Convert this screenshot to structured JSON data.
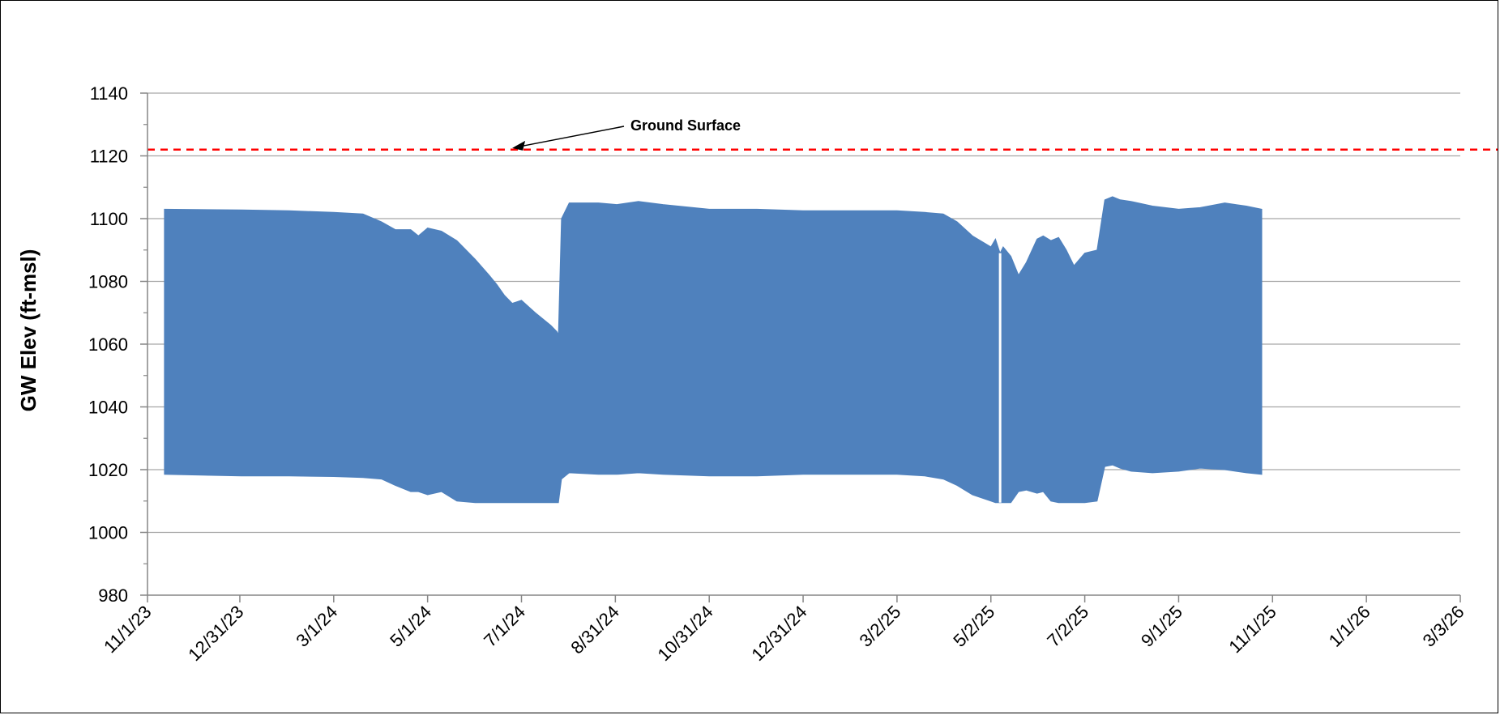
{
  "chart_data": {
    "type": "area",
    "title": "",
    "xlabel": "",
    "ylabel": "GW Elev (ft-msl)",
    "xlim": [
      "11/1/23",
      "3/3/26"
    ],
    "ylim": [
      980,
      1140
    ],
    "y_ticks": [
      980,
      1000,
      1020,
      1040,
      1060,
      1080,
      1100,
      1120,
      1140
    ],
    "x_ticks": [
      "11/1/23",
      "12/31/23",
      "3/1/24",
      "5/1/24",
      "7/1/24",
      "8/31/24",
      "10/31/24",
      "12/31/24",
      "3/2/25",
      "5/2/25",
      "7/2/25",
      "9/1/25",
      "11/1/25",
      "1/1/26",
      "3/3/26"
    ],
    "grid": true,
    "colors": {
      "series": "#4F81BD",
      "ground_surface": "#FF0000",
      "grid": "#A6A6A6"
    },
    "reference_lines": [
      {
        "name": "Ground Surface",
        "y": 1122,
        "style": "dashed",
        "color": "#FF0000"
      }
    ],
    "annotations": [
      {
        "text": "Ground Surface",
        "arrow_target": [
          "6/25/24",
          1122.5
        ]
      }
    ],
    "series": [
      {
        "fill": "band",
        "x": [
          "11/12/23",
          "1/1/24",
          "2/1/24",
          "3/1/24",
          "3/20/24",
          "4/1/24",
          "4/10/24",
          "4/20/24",
          "4/25/24",
          "5/1/24",
          "5/10/24",
          "5/20/24",
          "6/1/24",
          "6/10/24",
          "6/15/24",
          "6/20/24",
          "6/25/24",
          "7/1/24",
          "7/10/24",
          "7/20/24",
          "7/24/24",
          "7/25/24",
          "7/27/24",
          "8/1/24",
          "8/20/24",
          "9/1/24",
          "9/15/24",
          "10/1/24",
          "10/31/24",
          "12/1/24",
          "12/31/24",
          "2/1/25",
          "3/2/25",
          "3/20/25",
          "4/1/25",
          "4/10/25",
          "4/20/25",
          "5/2/25",
          "5/5/25",
          "5/8/25",
          "5/10/25",
          "5/15/25",
          "5/20/25",
          "5/25/25",
          "6/1/25",
          "6/5/25",
          "6/10/25",
          "6/15/25",
          "6/20/25",
          "6/25/25",
          "7/2/25",
          "7/10/25",
          "7/15/25",
          "7/20/25",
          "7/25/25",
          "8/1/25",
          "8/15/25",
          "9/1/25",
          "9/15/25",
          "10/1/25",
          "10/15/25",
          "10/25/25"
        ],
        "upper": [
          1103,
          1102.8,
          1102.5,
          1102,
          1101.5,
          1099,
          1096.5,
          1096.5,
          1094.5,
          1097,
          1096,
          1093,
          1087,
          1082,
          1079,
          1075.5,
          1073,
          1074,
          1070,
          1066,
          1064,
          1063,
          1100,
          1105,
          1105,
          1104.5,
          1105.5,
          1104.5,
          1103,
          1103,
          1102.5,
          1102.5,
          1102.5,
          1102,
          1101.5,
          1099,
          1094.5,
          1091,
          1093.5,
          1089,
          1091,
          1088,
          1082,
          1086,
          1093.5,
          1094.5,
          1093,
          1094,
          1090,
          1085,
          1089,
          1090,
          1106,
          1107,
          1106,
          1105.5,
          1104,
          1103,
          1103.5,
          1105,
          1104,
          1103
        ],
        "lower": [
          1018.5,
          1018,
          1018,
          1017.8,
          1017.5,
          1017,
          1015,
          1013,
          1013,
          1012,
          1013,
          1010,
          1009.5,
          1009.5,
          1009.5,
          1009.5,
          1009.5,
          1009.5,
          1009.5,
          1009.5,
          1009.5,
          1009.5,
          1017,
          1019,
          1018.5,
          1018.5,
          1019,
          1018.5,
          1018,
          1018,
          1018.5,
          1018.5,
          1018.5,
          1018,
          1017,
          1015,
          1012,
          1010,
          1009.5,
          1009.5,
          1009.5,
          1009.5,
          1013,
          1013.5,
          1012.5,
          1013,
          1010,
          1009.5,
          1009.5,
          1009.5,
          1009.5,
          1010,
          1021,
          1021.5,
          1020.5,
          1019.5,
          1019,
          1019.5,
          1020.5,
          1020,
          1019,
          1018.5
        ]
      }
    ]
  }
}
